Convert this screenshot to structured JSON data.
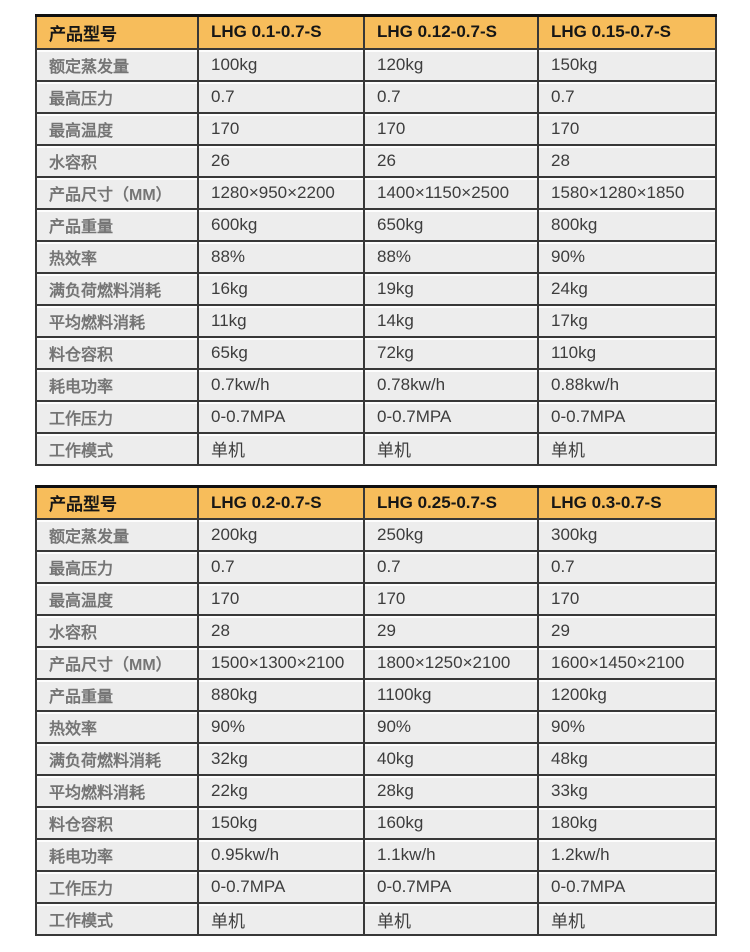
{
  "colors": {
    "header_bg": "#f7bd5b",
    "row_bg": "#ededed",
    "grid_border": "#383838",
    "outer_top_border": "#101010",
    "label_text": "#757575",
    "value_text": "#3d3d3d",
    "header_text": "#161616"
  },
  "tables": [
    {
      "header": {
        "label": "产品型号",
        "models": [
          "LHG 0.1-0.7-S",
          "LHG 0.12-0.7-S",
          "LHG 0.15-0.7-S"
        ]
      },
      "rows": [
        {
          "label": "额定蒸发量",
          "values": [
            "100kg",
            "120kg",
            "150kg"
          ]
        },
        {
          "label": "最高压力",
          "values": [
            "0.7",
            "0.7",
            "0.7"
          ]
        },
        {
          "label": "最高温度",
          "values": [
            "170",
            "170",
            "170"
          ]
        },
        {
          "label": "水容积",
          "values": [
            "26",
            "26",
            "28"
          ]
        },
        {
          "label": "产品尺寸（MM）",
          "values": [
            "1280×950×2200",
            "1400×1150×2500",
            "1580×1280×1850"
          ]
        },
        {
          "label": "产品重量",
          "values": [
            "600kg",
            "650kg",
            "800kg"
          ]
        },
        {
          "label": "热效率",
          "values": [
            "88%",
            "88%",
            "90%"
          ]
        },
        {
          "label": "满负荷燃料消耗",
          "values": [
            "16kg",
            "19kg",
            "24kg"
          ]
        },
        {
          "label": "平均燃料消耗",
          "values": [
            "11kg",
            "14kg",
            "17kg"
          ]
        },
        {
          "label": "料仓容积",
          "values": [
            "65kg",
            "72kg",
            "110kg"
          ]
        },
        {
          "label": "耗电功率",
          "values": [
            "0.7kw/h",
            "0.78kw/h",
            "0.88kw/h"
          ]
        },
        {
          "label": "工作压力",
          "values": [
            "0-0.7MPA",
            "0-0.7MPA",
            "0-0.7MPA"
          ]
        },
        {
          "label": "工作模式",
          "values": [
            "单机",
            "单机",
            "单机"
          ]
        }
      ]
    },
    {
      "header": {
        "label": "产品型号",
        "models": [
          "LHG 0.2-0.7-S",
          "LHG 0.25-0.7-S",
          "LHG 0.3-0.7-S"
        ]
      },
      "rows": [
        {
          "label": "额定蒸发量",
          "values": [
            "200kg",
            "250kg",
            "300kg"
          ]
        },
        {
          "label": "最高压力",
          "values": [
            "0.7",
            "0.7",
            "0.7"
          ]
        },
        {
          "label": "最高温度",
          "values": [
            "170",
            "170",
            "170"
          ]
        },
        {
          "label": "水容积",
          "values": [
            "28",
            "29",
            "29"
          ]
        },
        {
          "label": "产品尺寸（MM）",
          "values": [
            "1500×1300×2100",
            "1800×1250×2100",
            "1600×1450×2100"
          ]
        },
        {
          "label": "产品重量",
          "values": [
            "880kg",
            "1100kg",
            "1200kg"
          ]
        },
        {
          "label": "热效率",
          "values": [
            "90%",
            "90%",
            "90%"
          ]
        },
        {
          "label": "满负荷燃料消耗",
          "values": [
            "32kg",
            "40kg",
            "48kg"
          ]
        },
        {
          "label": "平均燃料消耗",
          "values": [
            "22kg",
            "28kg",
            "33kg"
          ]
        },
        {
          "label": "料仓容积",
          "values": [
            "150kg",
            "160kg",
            "180kg"
          ]
        },
        {
          "label": "耗电功率",
          "values": [
            "0.95kw/h",
            "1.1kw/h",
            "1.2kw/h"
          ]
        },
        {
          "label": "工作压力",
          "values": [
            "0-0.7MPA",
            "0-0.7MPA",
            "0-0.7MPA"
          ]
        },
        {
          "label": "工作模式",
          "values": [
            "单机",
            "单机",
            "单机"
          ]
        }
      ]
    }
  ]
}
